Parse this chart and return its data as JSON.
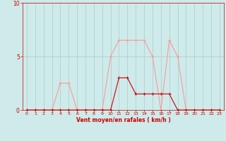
{
  "x": [
    0,
    1,
    2,
    3,
    4,
    5,
    6,
    7,
    8,
    9,
    10,
    11,
    12,
    13,
    14,
    15,
    16,
    17,
    18,
    19,
    20,
    21,
    22,
    23
  ],
  "rafales": [
    0,
    0,
    0,
    0,
    2.5,
    2.5,
    0,
    0,
    0,
    0,
    5,
    6.5,
    6.5,
    6.5,
    6.5,
    5,
    0,
    6.5,
    5,
    0,
    0,
    0,
    0,
    0
  ],
  "moyen": [
    0,
    0,
    0,
    0,
    0,
    0,
    0,
    0,
    0,
    0,
    0,
    3,
    3,
    1.5,
    1.5,
    1.5,
    1.5,
    1.5,
    0,
    0,
    0,
    0,
    0,
    0
  ],
  "bg_color": "#ceeaea",
  "line_color_light": "#ff9999",
  "line_color_dark": "#cc0000",
  "grid_color": "#aacccc",
  "xlabel": "Vent moyen/en rafales ( km/h )",
  "xlabel_color": "#cc0000",
  "tick_color": "#cc0000",
  "ylim": [
    0,
    10
  ],
  "xlim": [
    -0.5,
    23.5
  ],
  "yticks": [
    0,
    5,
    10
  ],
  "xticks": [
    0,
    1,
    2,
    3,
    4,
    5,
    6,
    7,
    8,
    9,
    10,
    11,
    12,
    13,
    14,
    15,
    16,
    17,
    18,
    19,
    20,
    21,
    22,
    23
  ]
}
